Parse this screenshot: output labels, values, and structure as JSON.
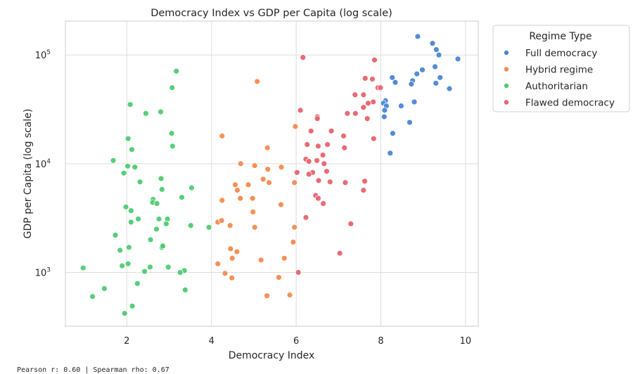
{
  "chart_data": {
    "type": "scatter",
    "title": "Democracy Index vs GDP per Capita (log scale)",
    "xlabel": "Democracy Index",
    "ylabel": "GDP per Capita (log scale)",
    "xlim": [
      0.55,
      10.3
    ],
    "ylim": [
      320,
      205000
    ],
    "yscale": "log",
    "grid": true,
    "legend": {
      "title": "Regime Type",
      "placement": "top-right-outside"
    },
    "x_ticks": [
      2,
      4,
      6,
      8,
      10
    ],
    "x_tick_labels": [
      "2",
      "4",
      "6",
      "8",
      "10"
    ],
    "y_ticks": [
      1000,
      10000,
      100000
    ],
    "y_tick_labels": [
      {
        "base": "10",
        "exp": "3"
      },
      {
        "base": "10",
        "exp": "4"
      },
      {
        "base": "10",
        "exp": "5"
      }
    ],
    "series": [
      {
        "name": "Full democracy",
        "color": "#4a86d4",
        "points": [
          [
            8.87,
            148000
          ],
          [
            9.22,
            128000
          ],
          [
            9.31,
            112000
          ],
          [
            9.37,
            100000
          ],
          [
            9.82,
            92000
          ],
          [
            9.28,
            78000
          ],
          [
            8.98,
            73000
          ],
          [
            8.85,
            67000
          ],
          [
            8.27,
            62000
          ],
          [
            9.4,
            62000
          ],
          [
            8.75,
            58000
          ],
          [
            8.34,
            56000
          ],
          [
            9.3,
            55000
          ],
          [
            8.72,
            54000
          ],
          [
            9.62,
            49000
          ],
          [
            8.11,
            38000
          ],
          [
            8.79,
            37000
          ],
          [
            8.06,
            36000
          ],
          [
            8.13,
            34000
          ],
          [
            8.48,
            34000
          ],
          [
            8.09,
            31000
          ],
          [
            8.08,
            27000
          ],
          [
            8.68,
            24000
          ],
          [
            8.28,
            19000
          ],
          [
            8.22,
            12500
          ]
        ]
      },
      {
        "name": "Hybrid regime",
        "color": "#f58a4d",
        "points": [
          [
            5.08,
            57000
          ],
          [
            5.98,
            22000
          ],
          [
            4.25,
            18000
          ],
          [
            5.32,
            14000
          ],
          [
            4.69,
            10000
          ],
          [
            5.02,
            9600
          ],
          [
            5.65,
            9300
          ],
          [
            5.33,
            8900
          ],
          [
            5.96,
            6700
          ],
          [
            5.36,
            6700
          ],
          [
            5.22,
            7200
          ],
          [
            4.56,
            6400
          ],
          [
            4.87,
            6400
          ],
          [
            4.61,
            5700
          ],
          [
            4.97,
            4800
          ],
          [
            4.68,
            4800
          ],
          [
            4.25,
            4600
          ],
          [
            5.64,
            4200
          ],
          [
            4.98,
            3600
          ],
          [
            4.15,
            2900
          ],
          [
            4.24,
            3000
          ],
          [
            4.44,
            2700
          ],
          [
            5.02,
            2600
          ],
          [
            5.96,
            2600
          ],
          [
            5.93,
            1900
          ],
          [
            4.45,
            1650
          ],
          [
            4.6,
            1550
          ],
          [
            4.49,
            1350
          ],
          [
            5.17,
            1300
          ],
          [
            5.72,
            1350
          ],
          [
            4.15,
            1200
          ],
          [
            4.32,
            980
          ],
          [
            4.48,
            890
          ],
          [
            5.59,
            900
          ],
          [
            5.31,
            610
          ],
          [
            5.85,
            620
          ]
        ]
      },
      {
        "name": "Authoritarian",
        "color": "#4ecb71",
        "points": [
          [
            3.17,
            71000
          ],
          [
            3.07,
            50000
          ],
          [
            2.08,
            35000
          ],
          [
            2.8,
            30000
          ],
          [
            2.45,
            29000
          ],
          [
            3.06,
            19000
          ],
          [
            2.03,
            17000
          ],
          [
            3.08,
            14500
          ],
          [
            2.12,
            13500
          ],
          [
            1.68,
            10700
          ],
          [
            2.02,
            9500
          ],
          [
            2.19,
            9300
          ],
          [
            1.93,
            8200
          ],
          [
            2.81,
            7300
          ],
          [
            2.31,
            6800
          ],
          [
            3.53,
            6000
          ],
          [
            2.83,
            5800
          ],
          [
            3.3,
            4900
          ],
          [
            2.62,
            4700
          ],
          [
            2.61,
            4400
          ],
          [
            2.71,
            4300
          ],
          [
            1.98,
            4000
          ],
          [
            2.1,
            3700
          ],
          [
            2.76,
            3100
          ],
          [
            2.96,
            3100
          ],
          [
            2.27,
            3100
          ],
          [
            2.1,
            2900
          ],
          [
            2.93,
            2800
          ],
          [
            3.51,
            2700
          ],
          [
            3.94,
            2600
          ],
          [
            2.7,
            2500
          ],
          [
            1.73,
            2200
          ],
          [
            2.56,
            2000
          ],
          [
            2.83,
            1700
          ],
          [
            2.85,
            1750
          ],
          [
            2.05,
            1700
          ],
          [
            1.84,
            1600
          ],
          [
            2.03,
            1200
          ],
          [
            1.89,
            1150
          ],
          [
            2.55,
            1120
          ],
          [
            2.98,
            1120
          ],
          [
            0.97,
            1100
          ],
          [
            3.36,
            1040
          ],
          [
            2.42,
            1020
          ],
          [
            3.26,
            1000
          ],
          [
            2.25,
            790
          ],
          [
            1.47,
            710
          ],
          [
            3.38,
            690
          ],
          [
            1.19,
            600
          ],
          [
            2.13,
            490
          ],
          [
            1.95,
            420
          ]
        ]
      },
      {
        "name": "Flawed democracy",
        "color": "#e8636b",
        "points": [
          [
            6.16,
            95000
          ],
          [
            7.85,
            90000
          ],
          [
            7.63,
            61000
          ],
          [
            7.8,
            60000
          ],
          [
            7.93,
            50000
          ],
          [
            7.99,
            50000
          ],
          [
            7.39,
            43000
          ],
          [
            7.59,
            43000
          ],
          [
            7.82,
            37000
          ],
          [
            7.7,
            36000
          ],
          [
            7.59,
            33000
          ],
          [
            6.1,
            31000
          ],
          [
            7.21,
            29000
          ],
          [
            7.4,
            29000
          ],
          [
            6.5,
            27000
          ],
          [
            6.5,
            26000
          ],
          [
            7.68,
            26000
          ],
          [
            6.35,
            20000
          ],
          [
            6.83,
            20000
          ],
          [
            7.12,
            18000
          ],
          [
            7.83,
            17000
          ],
          [
            6.26,
            15000
          ],
          [
            6.52,
            14500
          ],
          [
            6.74,
            15000
          ],
          [
            7.14,
            14000
          ],
          [
            6.63,
            12000
          ],
          [
            6.23,
            11000
          ],
          [
            6.3,
            10500
          ],
          [
            6.49,
            10700
          ],
          [
            6.66,
            10000
          ],
          [
            6.02,
            8300
          ],
          [
            6.39,
            8300
          ],
          [
            6.3,
            8000
          ],
          [
            6.72,
            8500
          ],
          [
            6.53,
            7000
          ],
          [
            6.8,
            6800
          ],
          [
            7.16,
            6700
          ],
          [
            7.62,
            6900
          ],
          [
            7.59,
            5700
          ],
          [
            6.46,
            5100
          ],
          [
            6.52,
            4800
          ],
          [
            6.64,
            4300
          ],
          [
            6.23,
            3200
          ],
          [
            7.29,
            2800
          ],
          [
            7.03,
            1500
          ],
          [
            6.05,
            1000
          ]
        ]
      }
    ],
    "annotation": "Pearson r: 0.60 | Spearman rho: 0.67"
  },
  "colors": {
    "grid": "#dddddd",
    "frame": "#cccccc",
    "marker_edge": "#ffffff"
  }
}
